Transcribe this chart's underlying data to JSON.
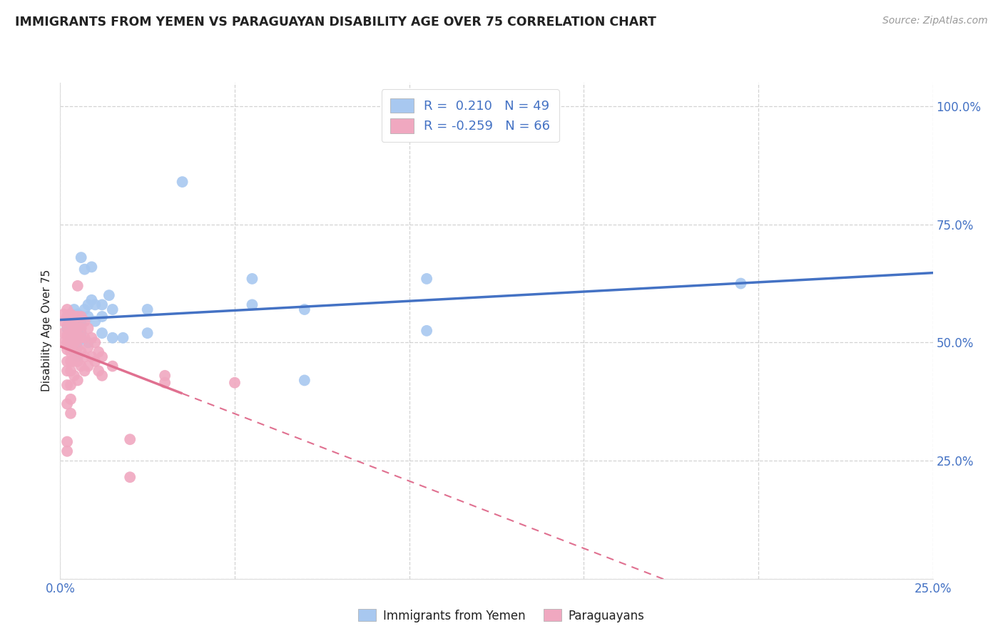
{
  "title": "IMMIGRANTS FROM YEMEN VS PARAGUAYAN DISABILITY AGE OVER 75 CORRELATION CHART",
  "source": "Source: ZipAtlas.com",
  "ylabel": "Disability Age Over 75",
  "xlim": [
    0.0,
    0.25
  ],
  "ylim": [
    0.0,
    1.05
  ],
  "r_blue": 0.21,
  "n_blue": 49,
  "r_pink": -0.259,
  "n_pink": 66,
  "blue_color": "#a8c8f0",
  "pink_color": "#f0a8c0",
  "blue_line_color": "#4472c4",
  "pink_line_color": "#e07090",
  "title_color": "#222222",
  "source_color": "#999999",
  "tick_color": "#4472c4",
  "grid_color": "#c8c8c8",
  "background_color": "#ffffff",
  "blue_scatter": [
    [
      0.002,
      0.555
    ],
    [
      0.002,
      0.53
    ],
    [
      0.003,
      0.56
    ],
    [
      0.003,
      0.545
    ],
    [
      0.003,
      0.525
    ],
    [
      0.003,
      0.51
    ],
    [
      0.003,
      0.5
    ],
    [
      0.003,
      0.49
    ],
    [
      0.004,
      0.57
    ],
    [
      0.004,
      0.555
    ],
    [
      0.004,
      0.535
    ],
    [
      0.004,
      0.515
    ],
    [
      0.004,
      0.5
    ],
    [
      0.004,
      0.48
    ],
    [
      0.005,
      0.56
    ],
    [
      0.005,
      0.54
    ],
    [
      0.005,
      0.52
    ],
    [
      0.005,
      0.5
    ],
    [
      0.005,
      0.47
    ],
    [
      0.006,
      0.68
    ],
    [
      0.006,
      0.555
    ],
    [
      0.006,
      0.54
    ],
    [
      0.006,
      0.52
    ],
    [
      0.007,
      0.655
    ],
    [
      0.007,
      0.57
    ],
    [
      0.008,
      0.58
    ],
    [
      0.008,
      0.555
    ],
    [
      0.008,
      0.5
    ],
    [
      0.009,
      0.66
    ],
    [
      0.009,
      0.59
    ],
    [
      0.01,
      0.58
    ],
    [
      0.01,
      0.545
    ],
    [
      0.012,
      0.58
    ],
    [
      0.012,
      0.555
    ],
    [
      0.012,
      0.52
    ],
    [
      0.014,
      0.6
    ],
    [
      0.015,
      0.57
    ],
    [
      0.015,
      0.51
    ],
    [
      0.018,
      0.51
    ],
    [
      0.025,
      0.57
    ],
    [
      0.025,
      0.52
    ],
    [
      0.035,
      0.84
    ],
    [
      0.055,
      0.635
    ],
    [
      0.055,
      0.58
    ],
    [
      0.07,
      0.57
    ],
    [
      0.07,
      0.42
    ],
    [
      0.105,
      0.635
    ],
    [
      0.105,
      0.525
    ],
    [
      0.195,
      0.625
    ]
  ],
  "pink_scatter": [
    [
      0.001,
      0.56
    ],
    [
      0.001,
      0.545
    ],
    [
      0.001,
      0.52
    ],
    [
      0.001,
      0.5
    ],
    [
      0.002,
      0.57
    ],
    [
      0.002,
      0.555
    ],
    [
      0.002,
      0.535
    ],
    [
      0.002,
      0.515
    ],
    [
      0.002,
      0.5
    ],
    [
      0.002,
      0.485
    ],
    [
      0.002,
      0.46
    ],
    [
      0.002,
      0.44
    ],
    [
      0.002,
      0.41
    ],
    [
      0.002,
      0.37
    ],
    [
      0.002,
      0.29
    ],
    [
      0.002,
      0.27
    ],
    [
      0.003,
      0.56
    ],
    [
      0.003,
      0.54
    ],
    [
      0.003,
      0.52
    ],
    [
      0.003,
      0.5
    ],
    [
      0.003,
      0.48
    ],
    [
      0.003,
      0.46
    ],
    [
      0.003,
      0.44
    ],
    [
      0.003,
      0.41
    ],
    [
      0.003,
      0.38
    ],
    [
      0.003,
      0.35
    ],
    [
      0.004,
      0.555
    ],
    [
      0.004,
      0.54
    ],
    [
      0.004,
      0.52
    ],
    [
      0.004,
      0.5
    ],
    [
      0.004,
      0.48
    ],
    [
      0.004,
      0.46
    ],
    [
      0.004,
      0.43
    ],
    [
      0.005,
      0.62
    ],
    [
      0.005,
      0.555
    ],
    [
      0.005,
      0.53
    ],
    [
      0.005,
      0.51
    ],
    [
      0.005,
      0.49
    ],
    [
      0.005,
      0.46
    ],
    [
      0.005,
      0.42
    ],
    [
      0.006,
      0.555
    ],
    [
      0.006,
      0.53
    ],
    [
      0.006,
      0.51
    ],
    [
      0.006,
      0.48
    ],
    [
      0.006,
      0.45
    ],
    [
      0.007,
      0.545
    ],
    [
      0.007,
      0.51
    ],
    [
      0.007,
      0.47
    ],
    [
      0.007,
      0.44
    ],
    [
      0.008,
      0.53
    ],
    [
      0.008,
      0.49
    ],
    [
      0.008,
      0.45
    ],
    [
      0.009,
      0.51
    ],
    [
      0.009,
      0.47
    ],
    [
      0.01,
      0.5
    ],
    [
      0.01,
      0.46
    ],
    [
      0.011,
      0.48
    ],
    [
      0.011,
      0.44
    ],
    [
      0.012,
      0.47
    ],
    [
      0.012,
      0.43
    ],
    [
      0.015,
      0.45
    ],
    [
      0.02,
      0.295
    ],
    [
      0.02,
      0.215
    ],
    [
      0.03,
      0.43
    ],
    [
      0.03,
      0.415
    ],
    [
      0.05,
      0.415
    ]
  ]
}
